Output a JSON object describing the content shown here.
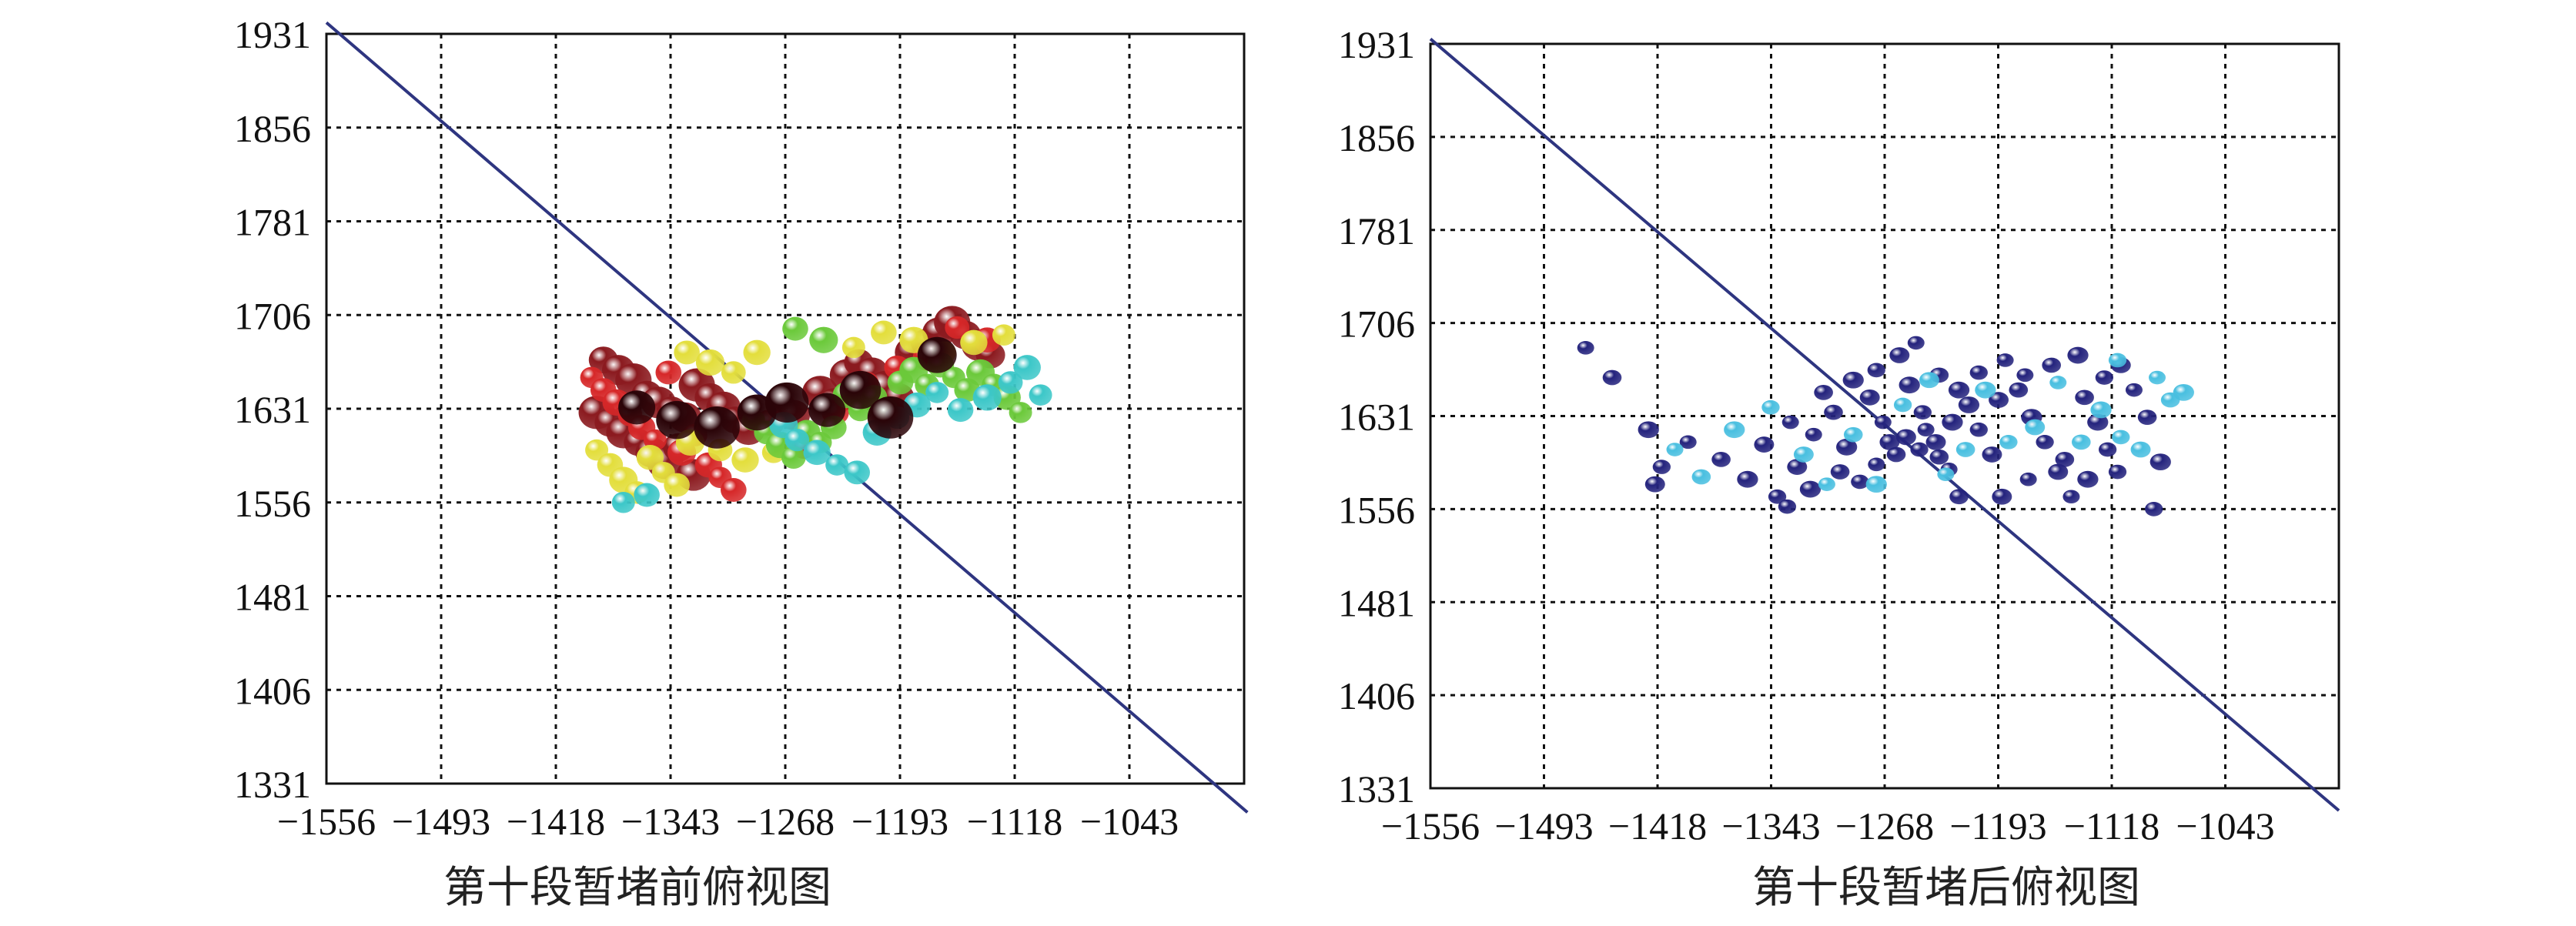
{
  "chart_data": [
    {
      "type": "scatter",
      "title": "第十段暂堵前俯视图",
      "xlabel": "",
      "ylabel": "",
      "x_ticks": [
        "−1556",
        "−1493",
        "−1418",
        "−1343",
        "−1268",
        "−1193",
        "−1118",
        "−1043"
      ],
      "y_ticks": [
        "1931",
        "1856",
        "1781",
        "1706",
        "1631",
        "1556",
        "1481",
        "1406",
        "1331"
      ],
      "xlim": [
        -1556,
        -1006
      ],
      "ylim": [
        1331,
        1931
      ],
      "grid": true,
      "line": {
        "x": [
          -1556,
          -1004
        ],
        "y": [
          1940,
          1308
        ],
        "color": "#2e3580"
      },
      "series": [
        {
          "color": "#8b1a1f",
          "points": [
            [
              -1390,
              1670
            ],
            [
              -1381,
              1662
            ],
            [
              -1372,
              1654
            ],
            [
              -1364,
              1642
            ],
            [
              -1357,
              1636
            ],
            [
              -1349,
              1630
            ],
            [
              -1341,
              1624
            ],
            [
              -1334,
              1650
            ],
            [
              -1326,
              1640
            ],
            [
              -1318,
              1632
            ],
            [
              -1311,
              1622
            ],
            [
              -1303,
              1614
            ],
            [
              -1394,
              1628
            ],
            [
              -1386,
              1620
            ],
            [
              -1378,
              1612
            ],
            [
              -1369,
              1604
            ],
            [
              -1361,
              1596
            ],
            [
              -1353,
              1588
            ],
            [
              -1345,
              1600
            ],
            [
              -1336,
              1578
            ],
            [
              -1284,
              1634
            ],
            [
              -1276,
              1626
            ],
            [
              -1260,
              1644
            ],
            [
              -1252,
              1636
            ],
            [
              -1244,
              1658
            ],
            [
              -1237,
              1668
            ],
            [
              -1229,
              1660
            ],
            [
              -1221,
              1648
            ],
            [
              -1213,
              1640
            ],
            [
              -1205,
              1676
            ],
            [
              -1197,
              1684
            ],
            [
              -1189,
              1692
            ],
            [
              -1181,
              1700
            ],
            [
              -1173,
              1690
            ],
            [
              -1165,
              1682
            ],
            [
              -1158,
              1674
            ]
          ]
        },
        {
          "color": "#d62728",
          "points": [
            [
              -1397,
              1656
            ],
            [
              -1390,
              1646
            ],
            [
              -1382,
              1636
            ],
            [
              -1374,
              1626
            ],
            [
              -1367,
              1616
            ],
            [
              -1359,
              1606
            ],
            [
              -1351,
              1660
            ],
            [
              -1343,
              1596
            ],
            [
              -1335,
              1610
            ],
            [
              -1327,
              1586
            ],
            [
              -1320,
              1576
            ],
            [
              -1312,
              1566
            ],
            [
              -1290,
              1620
            ],
            [
              -1270,
              1600
            ],
            [
              -1251,
              1628
            ],
            [
              -1232,
              1652
            ],
            [
              -1214,
              1664
            ],
            [
              -1196,
              1672
            ],
            [
              -1178,
              1696
            ],
            [
              -1160,
              1686
            ]
          ]
        },
        {
          "color": "#e3de3c",
          "points": [
            [
              -1394,
              1598
            ],
            [
              -1386,
              1586
            ],
            [
              -1378,
              1574
            ],
            [
              -1370,
              1564
            ],
            [
              -1362,
              1592
            ],
            [
              -1354,
              1580
            ],
            [
              -1346,
              1570
            ],
            [
              -1338,
              1604
            ],
            [
              -1320,
              1598
            ],
            [
              -1305,
              1590
            ],
            [
              -1288,
              1596
            ],
            [
              -1340,
              1676
            ],
            [
              -1326,
              1668
            ],
            [
              -1312,
              1660
            ],
            [
              -1298,
              1676
            ],
            [
              -1240,
              1680
            ],
            [
              -1222,
              1692
            ],
            [
              -1204,
              1686
            ],
            [
              -1186,
              1676
            ],
            [
              -1168,
              1684
            ],
            [
              -1150,
              1690
            ]
          ]
        },
        {
          "color": "#6bc93a",
          "points": [
            [
              -1300,
              1622
            ],
            [
              -1292,
              1612
            ],
            [
              -1284,
              1602
            ],
            [
              -1276,
              1592
            ],
            [
              -1268,
              1612
            ],
            [
              -1260,
              1604
            ],
            [
              -1252,
              1616
            ],
            [
              -1244,
              1642
            ],
            [
              -1236,
              1630
            ],
            [
              -1228,
              1640
            ],
            [
              -1220,
              1630
            ],
            [
              -1212,
              1652
            ],
            [
              -1204,
              1662
            ],
            [
              -1196,
              1650
            ],
            [
              -1188,
              1666
            ],
            [
              -1180,
              1656
            ],
            [
              -1172,
              1646
            ],
            [
              -1164,
              1660
            ],
            [
              -1156,
              1650
            ],
            [
              -1148,
              1640
            ],
            [
              -1140,
              1628
            ],
            [
              -1275,
              1695
            ],
            [
              -1258,
              1686
            ]
          ]
        },
        {
          "color": "#3cc7c8",
          "points": [
            [
              -1378,
              1556
            ],
            [
              -1364,
              1562
            ],
            [
              -1282,
              1618
            ],
            [
              -1274,
              1606
            ],
            [
              -1262,
              1596
            ],
            [
              -1250,
              1586
            ],
            [
              -1238,
              1580
            ],
            [
              -1226,
              1612
            ],
            [
              -1214,
              1624
            ],
            [
              -1202,
              1634
            ],
            [
              -1190,
              1644
            ],
            [
              -1176,
              1630
            ],
            [
              -1160,
              1640
            ],
            [
              -1146,
              1652
            ],
            [
              -1136,
              1664
            ],
            [
              -1128,
              1642
            ]
          ]
        },
        {
          "color": "#2a0408",
          "points": [
            [
              -1370,
              1632
            ],
            [
              -1346,
              1622
            ],
            [
              -1322,
              1616
            ],
            [
              -1298,
              1628
            ],
            [
              -1280,
              1636
            ],
            [
              -1256,
              1630
            ],
            [
              -1236,
              1646
            ],
            [
              -1218,
              1624
            ],
            [
              -1190,
              1674
            ]
          ]
        }
      ]
    },
    {
      "type": "scatter",
      "title": "第十段暂堵后俯视图",
      "xlabel": "",
      "ylabel": "",
      "x_ticks": [
        "−1556",
        "−1493",
        "−1418",
        "−1343",
        "−1268",
        "−1193",
        "−1118",
        "−1043"
      ],
      "y_ticks": [
        "1931",
        "1856",
        "1781",
        "1706",
        "1631",
        "1556",
        "1481",
        "1406",
        "1331"
      ],
      "xlim": [
        -1556,
        -1006
      ],
      "ylim": [
        1331,
        1931
      ],
      "grid": true,
      "line": {
        "x": [
          -1556,
          -1006
        ],
        "y": [
          1935,
          1313
        ],
        "color": "#2e3580"
      },
      "series": [
        {
          "color": "#24237d",
          "points": [
            [
              -1462,
              1686
            ],
            [
              -1446,
              1662
            ],
            [
              -1424,
              1620
            ],
            [
              -1416,
              1590
            ],
            [
              -1420,
              1576
            ],
            [
              -1400,
              1610
            ],
            [
              -1380,
              1596
            ],
            [
              -1364,
              1580
            ],
            [
              -1346,
              1566
            ],
            [
              -1334,
              1590
            ],
            [
              -1324,
              1616
            ],
            [
              -1312,
              1634
            ],
            [
              -1304,
              1606
            ],
            [
              -1296,
              1578
            ],
            [
              -1290,
              1646
            ],
            [
              -1282,
              1626
            ],
            [
              -1274,
              1600
            ],
            [
              -1266,
              1656
            ],
            [
              -1258,
              1634
            ],
            [
              -1250,
              1610
            ],
            [
              -1242,
              1588
            ],
            [
              -1236,
              1566
            ],
            [
              -1230,
              1640
            ],
            [
              -1224,
              1620
            ],
            [
              -1216,
              1600
            ],
            [
              -1208,
              1676
            ],
            [
              -1200,
              1652
            ],
            [
              -1192,
              1630
            ],
            [
              -1184,
              1610
            ],
            [
              -1176,
              1586
            ],
            [
              -1168,
              1566
            ],
            [
              -1160,
              1646
            ],
            [
              -1152,
              1626
            ],
            [
              -1146,
              1604
            ],
            [
              -1138,
              1672
            ],
            [
              -1130,
              1652
            ],
            [
              -1122,
              1630
            ],
            [
              -1114,
              1594
            ],
            [
              -1118,
              1556
            ],
            [
              -1354,
              1608
            ],
            [
              -1338,
              1626
            ],
            [
              -1318,
              1650
            ],
            [
              -1300,
              1660
            ],
            [
              -1286,
              1668
            ],
            [
              -1272,
              1680
            ],
            [
              -1262,
              1690
            ],
            [
              -1248,
              1664
            ],
            [
              -1236,
              1652
            ],
            [
              -1224,
              1666
            ],
            [
              -1212,
              1644
            ],
            [
              -1196,
              1664
            ],
            [
              -1180,
              1672
            ],
            [
              -1164,
              1680
            ],
            [
              -1148,
              1662
            ],
            [
              -1268,
              1614
            ],
            [
              -1256,
              1620
            ],
            [
              -1248,
              1598
            ],
            [
              -1240,
              1626
            ],
            [
              -1260,
              1604
            ],
            [
              -1278,
              1610
            ],
            [
              -1286,
              1592
            ],
            [
              -1308,
              1586
            ],
            [
              -1326,
              1572
            ],
            [
              -1340,
              1558
            ],
            [
              -1210,
              1566
            ],
            [
              -1194,
              1580
            ],
            [
              -1172,
              1596
            ],
            [
              -1158,
              1580
            ],
            [
              -1140,
              1586
            ]
          ]
        },
        {
          "color": "#49bfe0",
          "points": [
            [
              -1408,
              1604
            ],
            [
              -1392,
              1582
            ],
            [
              -1372,
              1620
            ],
            [
              -1350,
              1638
            ],
            [
              -1330,
              1600
            ],
            [
              -1316,
              1576
            ],
            [
              -1300,
              1616
            ],
            [
              -1286,
              1576
            ],
            [
              -1270,
              1640
            ],
            [
              -1254,
              1660
            ],
            [
              -1244,
              1584
            ],
            [
              -1232,
              1604
            ],
            [
              -1220,
              1652
            ],
            [
              -1206,
              1610
            ],
            [
              -1190,
              1622
            ],
            [
              -1176,
              1658
            ],
            [
              -1162,
              1610
            ],
            [
              -1150,
              1636
            ],
            [
              -1138,
              1614
            ],
            [
              -1126,
              1604
            ],
            [
              -1116,
              1662
            ],
            [
              -1108,
              1644
            ],
            [
              -1100,
              1650
            ],
            [
              -1140,
              1676
            ]
          ]
        }
      ]
    }
  ]
}
